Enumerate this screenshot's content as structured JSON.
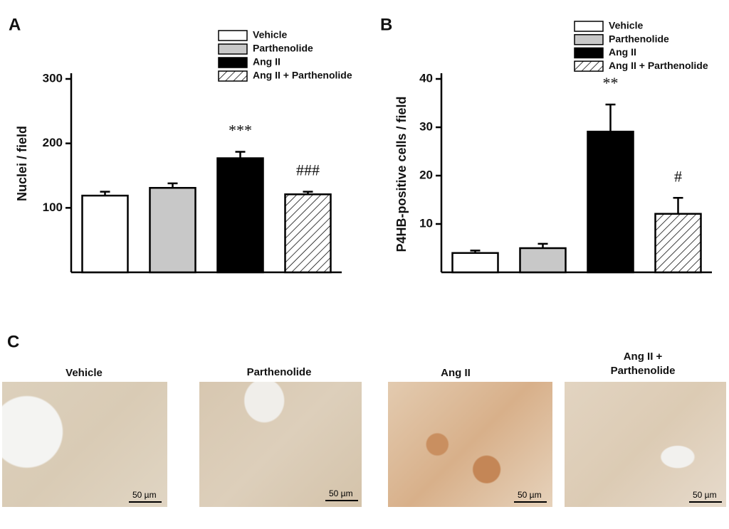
{
  "chart_data": [
    {
      "type": "bar",
      "label": "A",
      "y_label": "Nuclei / field",
      "categories": [
        "Vehicle",
        "Parthenolide",
        "Ang II",
        "Ang II + Parthenolide"
      ],
      "values": [
        119,
        131,
        177,
        121
      ],
      "errors": [
        6,
        7,
        10,
        4
      ],
      "annotations": [
        null,
        null,
        "***",
        "###"
      ],
      "fills": [
        "#ffffff",
        "#c8c8c8",
        "#000000",
        "#ffffff"
      ],
      "hatch": [
        false,
        false,
        false,
        true
      ],
      "ylim": [
        0,
        300
      ],
      "yticks": [
        100,
        200,
        300
      ]
    },
    {
      "type": "bar",
      "label": "B",
      "y_label": "P4HB-positive cells / field",
      "categories": [
        "Vehicle",
        "Parthenolide",
        "Ang II",
        "Ang II + Parthenolide"
      ],
      "values": [
        4,
        5,
        29.1,
        12.1
      ],
      "errors": [
        0.5,
        0.9,
        5.6,
        3.3
      ],
      "annotations": [
        null,
        null,
        "**",
        "#"
      ],
      "fills": [
        "#ffffff",
        "#c8c8c8",
        "#000000",
        "#ffffff"
      ],
      "hatch": [
        false,
        false,
        false,
        true
      ],
      "ylim": [
        0,
        40
      ],
      "yticks": [
        10,
        20,
        30,
        40
      ]
    }
  ],
  "micrographs": {
    "label": "C",
    "images": [
      {
        "title": "Vehicle",
        "scale_bar": "50 µm"
      },
      {
        "title": "Parthenolide",
        "scale_bar": "50 µm"
      },
      {
        "title": "Ang II",
        "scale_bar": "50 µm"
      },
      {
        "title": "Ang II + Parthenolide",
        "scale_bar": "50 µm"
      }
    ]
  }
}
